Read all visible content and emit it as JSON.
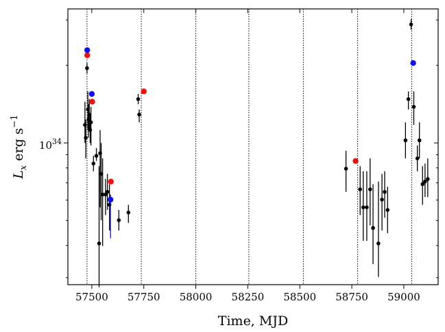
{
  "chart_data": {
    "type": "scatter",
    "title": "",
    "xlabel": "Time, MJD",
    "ylabel": "L",
    "ylabel_sub": "x",
    "ylabel_unit": " erg s",
    "ylabel_sup": "−1",
    "ytick_base": "10",
    "ytick_exp": "34",
    "xlim": [
      57385,
      59165
    ],
    "ylog": true,
    "ylim_log10": [
      33.45,
      34.52
    ],
    "ytick_log10": 34,
    "xticks": [
      57500,
      57750,
      58000,
      58250,
      58500,
      58750,
      59000
    ],
    "xtick_labels": [
      "57500",
      "57750",
      "58000",
      "58250",
      "58500",
      "58750",
      "59000"
    ],
    "vlines": [
      57477,
      57738,
      58000,
      58255,
      58517,
      58778,
      59038
    ],
    "grid": false,
    "legend": "none",
    "colors": {
      "black": "#000000",
      "red": "#ee1111",
      "blue": "#1111ee"
    },
    "series": [
      {
        "color": "black",
        "points": [
          [
            57467,
            34.07,
            34.0,
            34.16
          ],
          [
            57471,
            34.02,
            33.94,
            34.09
          ],
          [
            57477,
            34.29,
            34.27,
            34.31
          ],
          [
            57481,
            34.13,
            34.05,
            34.2
          ],
          [
            57484,
            34.09,
            34.02,
            34.15
          ],
          [
            57488,
            34.11,
            34.05,
            34.17
          ],
          [
            57492,
            34.05,
            34.0,
            34.11
          ],
          [
            57496,
            34.08,
            33.99,
            34.14
          ],
          [
            57508,
            33.92,
            33.89,
            33.95
          ],
          [
            57522,
            33.95,
            33.93,
            33.98
          ],
          [
            57535,
            33.61,
            33.44,
            33.91
          ],
          [
            57540,
            33.96,
            33.75,
            34.05
          ],
          [
            57545,
            33.88,
            33.7,
            34.0
          ],
          [
            57552,
            33.8,
            33.6,
            33.94
          ],
          [
            57566,
            33.8,
            33.72,
            33.86
          ],
          [
            57575,
            33.81,
            33.74,
            33.88
          ],
          [
            57585,
            33.76,
            33.66,
            33.84
          ],
          [
            57630,
            33.7,
            33.66,
            33.74
          ],
          [
            57676,
            33.73,
            33.69,
            33.76
          ],
          [
            57723,
            34.17,
            34.15,
            34.19
          ],
          [
            57728,
            34.11,
            34.08,
            34.13
          ],
          [
            58722,
            33.9,
            33.81,
            33.97
          ],
          [
            58790,
            33.82,
            33.72,
            33.91
          ],
          [
            58805,
            33.75,
            33.62,
            33.89
          ],
          [
            58822,
            33.75,
            33.62,
            33.89
          ],
          [
            58838,
            33.82,
            33.68,
            33.94
          ],
          [
            58852,
            33.67,
            33.53,
            33.84
          ],
          [
            58878,
            33.61,
            33.48,
            33.85
          ],
          [
            58895,
            33.78,
            33.66,
            33.88
          ],
          [
            58908,
            33.81,
            33.71,
            33.89
          ],
          [
            58922,
            33.74,
            33.65,
            33.83
          ],
          [
            59008,
            34.01,
            33.94,
            34.08
          ],
          [
            59022,
            34.17,
            34.13,
            34.2
          ],
          [
            59035,
            34.46,
            34.44,
            34.48
          ],
          [
            59048,
            34.14,
            34.07,
            34.2
          ],
          [
            59065,
            33.94,
            33.89,
            33.99
          ],
          [
            59075,
            34.01,
            33.94,
            34.08
          ],
          [
            59090,
            33.84,
            33.76,
            33.91
          ],
          [
            59102,
            33.85,
            33.79,
            33.92
          ],
          [
            59115,
            33.86,
            33.79,
            33.94
          ]
        ]
      },
      {
        "color": "red",
        "points": [
          [
            57478,
            34.34,
            34.34,
            34.34
          ],
          [
            57502,
            34.16,
            34.16,
            34.16
          ],
          [
            57592,
            33.85,
            33.85,
            33.85
          ],
          [
            57750,
            34.2,
            34.2,
            34.2
          ],
          [
            58768,
            33.93,
            33.93,
            33.93
          ]
        ]
      },
      {
        "color": "blue",
        "points": [
          [
            57478,
            34.36,
            34.36,
            34.36
          ],
          [
            57500,
            34.19,
            34.19,
            34.19
          ],
          [
            57590,
            33.78,
            33.63,
            33.8
          ],
          [
            59045,
            34.31,
            34.31,
            34.31
          ]
        ]
      }
    ]
  }
}
